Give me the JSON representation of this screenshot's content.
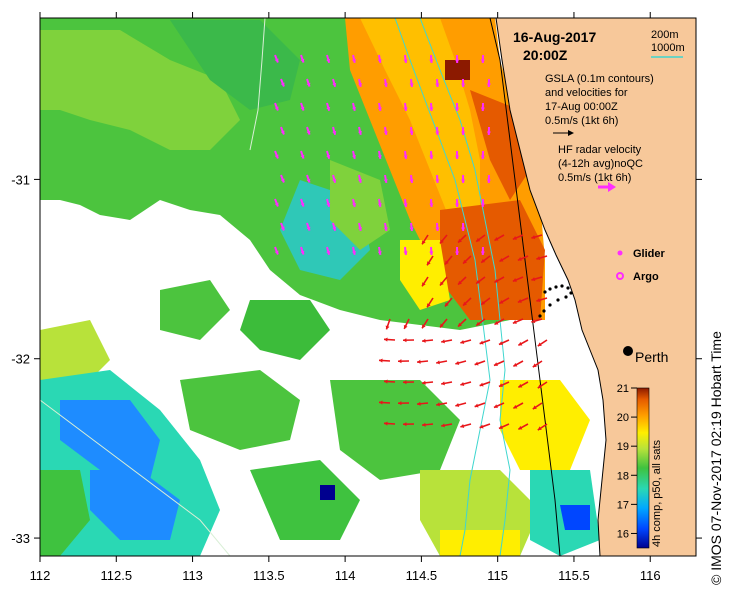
{
  "title": {
    "date": "16-Aug-2017",
    "time": "20:00Z"
  },
  "legend": {
    "depth_200": "200m",
    "depth_1000": "1000m",
    "gsla_lines": [
      "GSLA (0.1m contours)",
      "and velocities for",
      "17-Aug 00:00Z",
      "0.5m/s (1kt 6h)"
    ],
    "hf_lines": [
      "HF radar velocity",
      "(4-12h avg)noQC",
      "0.5m/s (1kt 6h)"
    ],
    "glider": "Glider",
    "argo": "Argo"
  },
  "city": "Perth",
  "axes": {
    "x_ticks": [
      "112",
      "112.5",
      "113",
      "113.5",
      "114",
      "114.5",
      "115",
      "115.5",
      "116"
    ],
    "y_ticks": [
      "-31",
      "-32",
      "-33"
    ],
    "x_range": [
      112.0,
      116.3
    ],
    "y_range": [
      -33.1,
      -30.1
    ]
  },
  "colorbar": {
    "label": "4h comp, p50, all sats",
    "ticks": [
      "16",
      "17",
      "18",
      "19",
      "20",
      "21"
    ],
    "range": [
      15.5,
      21.0
    ]
  },
  "credit": "© IMOS 07-Nov-2017 02:19 Hobart Time",
  "colors": {
    "land": "#f7c89a",
    "vector_gsla": "#ff2cff",
    "vector_hf": "#e8161a",
    "contour_200": "#000000",
    "contour_1000": "#3fd6cf"
  }
}
